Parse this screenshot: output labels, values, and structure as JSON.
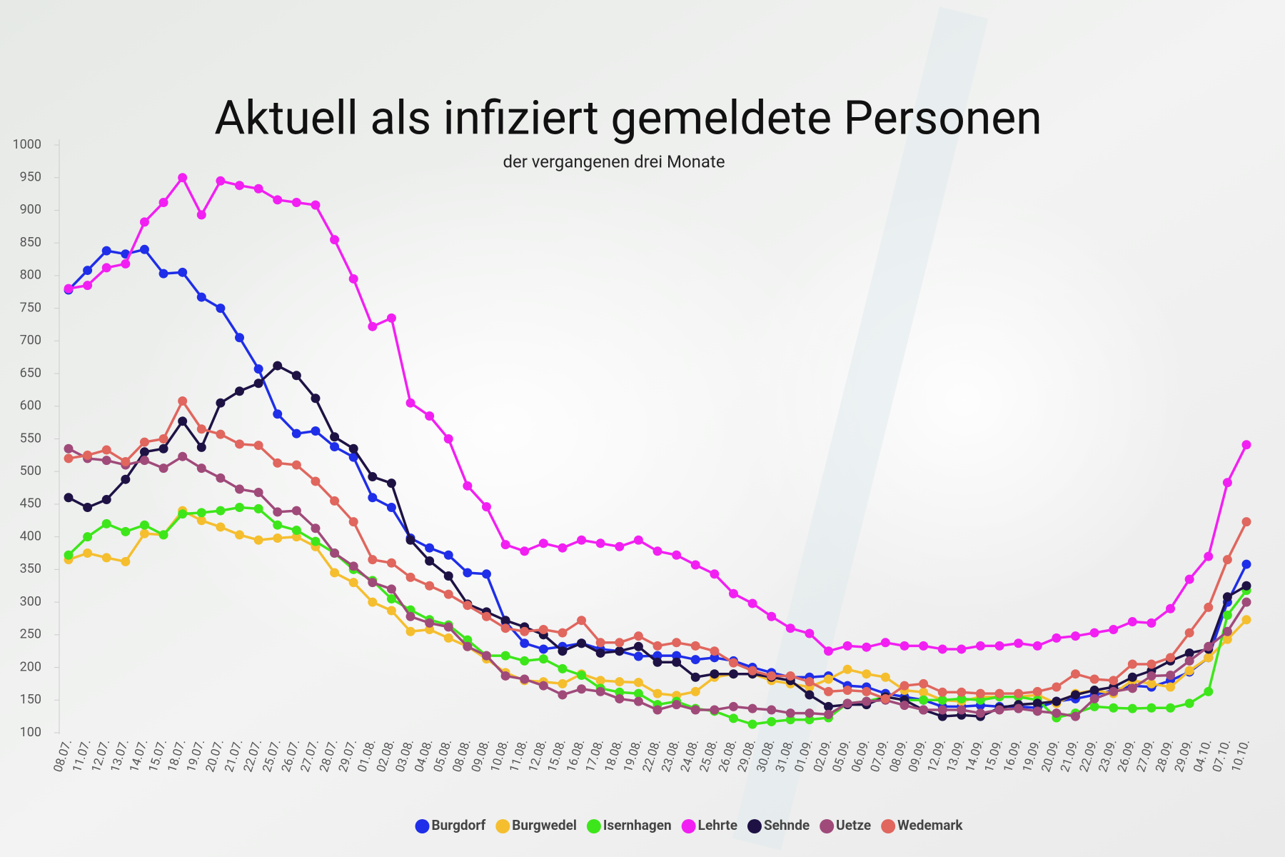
{
  "chart_data": {
    "type": "line",
    "title": "Aktuell als infiziert gemeldete Personen",
    "subtitle": "der vergangenen drei Monate",
    "categories": [
      "08.07.",
      "11.07.",
      "12.07.",
      "13.07.",
      "14.07.",
      "15.07.",
      "18.07.",
      "19.07.",
      "20.07.",
      "21.07.",
      "22.07.",
      "25.07.",
      "26.07.",
      "27.07.",
      "28.07.",
      "29.07.",
      "01.08.",
      "02.08.",
      "03.08.",
      "04.08.",
      "05.08.",
      "08.08.",
      "09.08.",
      "10.08.",
      "11.08.",
      "12.08.",
      "15.08.",
      "16.08.",
      "17.08.",
      "18.08.",
      "19.08.",
      "22.08.",
      "23.08.",
      "24.08.",
      "25.08.",
      "26.08.",
      "29.08.",
      "30.08.",
      "31.08.",
      "01.09.",
      "02.09.",
      "05.09.",
      "06.09.",
      "07.09.",
      "08.09.",
      "09.09.",
      "12.09.",
      "13.09.",
      "14.09.",
      "15.09.",
      "16.09.",
      "19.09.",
      "20.09.",
      "21.09.",
      "22.09.",
      "23.09.",
      "26.09.",
      "27.09.",
      "28.09.",
      "29.09.",
      "04.10.",
      "07.10.",
      "10.10."
    ],
    "series": [
      {
        "name": "Burgdorf",
        "color": "#1f2ee8",
        "values": [
          778,
          808,
          838,
          833,
          840,
          803,
          805,
          767,
          750,
          705,
          657,
          588,
          558,
          562,
          538,
          522,
          460,
          445,
          398,
          383,
          372,
          345,
          343,
          270,
          237,
          228,
          232,
          237,
          228,
          225,
          217,
          218,
          218,
          212,
          215,
          210,
          200,
          192,
          185,
          185,
          187,
          172,
          170,
          160,
          155,
          150,
          140,
          140,
          142,
          140,
          140,
          138,
          148,
          152,
          158,
          165,
          172,
          170,
          180,
          193,
          215,
          300,
          358
        ]
      },
      {
        "name": "Burgwedel",
        "color": "#f5be2e",
        "values": [
          365,
          375,
          368,
          362,
          405,
          403,
          440,
          425,
          415,
          403,
          395,
          398,
          400,
          385,
          345,
          330,
          300,
          287,
          255,
          258,
          245,
          232,
          213,
          192,
          180,
          178,
          175,
          190,
          180,
          178,
          177,
          160,
          157,
          163,
          185,
          190,
          190,
          180,
          175,
          170,
          182,
          197,
          190,
          185,
          165,
          162,
          150,
          148,
          155,
          155,
          155,
          158,
          145,
          160,
          165,
          160,
          180,
          175,
          170,
          195,
          215,
          243,
          273
        ]
      },
      {
        "name": "Isernhagen",
        "color": "#3de61a",
        "values": [
          372,
          400,
          420,
          408,
          418,
          403,
          435,
          437,
          440,
          445,
          443,
          418,
          410,
          393,
          375,
          350,
          333,
          305,
          288,
          273,
          265,
          242,
          218,
          218,
          210,
          213,
          198,
          188,
          168,
          162,
          160,
          143,
          148,
          137,
          133,
          122,
          113,
          117,
          120,
          120,
          123,
          145,
          148,
          155,
          150,
          150,
          150,
          152,
          150,
          155,
          155,
          150,
          123,
          130,
          140,
          138,
          137,
          138,
          138,
          145,
          163,
          280,
          318
        ]
      },
      {
        "name": "Lehrte",
        "color": "#f21ff2",
        "values": [
          780,
          785,
          812,
          818,
          882,
          912,
          950,
          893,
          945,
          938,
          933,
          916,
          912,
          908,
          855,
          795,
          722,
          735,
          605,
          585,
          550,
          478,
          446,
          388,
          378,
          390,
          383,
          395,
          390,
          385,
          395,
          378,
          372,
          357,
          343,
          313,
          298,
          278,
          260,
          252,
          225,
          233,
          231,
          238,
          233,
          233,
          228,
          228,
          233,
          233,
          237,
          233,
          245,
          248,
          253,
          258,
          270,
          268,
          290,
          335,
          370,
          483,
          541
        ]
      },
      {
        "name": "Sehnde",
        "color": "#1e1245",
        "values": [
          460,
          445,
          457,
          488,
          530,
          535,
          577,
          537,
          605,
          623,
          635,
          662,
          647,
          612,
          553,
          535,
          492,
          482,
          395,
          363,
          340,
          297,
          285,
          272,
          262,
          250,
          225,
          237,
          222,
          225,
          232,
          208,
          208,
          185,
          190,
          190,
          190,
          185,
          180,
          158,
          140,
          143,
          143,
          155,
          150,
          135,
          125,
          127,
          125,
          138,
          143,
          145,
          148,
          158,
          165,
          170,
          185,
          195,
          210,
          222,
          228,
          308,
          325
        ]
      },
      {
        "name": "Uetze",
        "color": "#a04a7a",
        "values": [
          535,
          520,
          517,
          510,
          517,
          505,
          523,
          505,
          490,
          473,
          468,
          438,
          440,
          413,
          375,
          355,
          330,
          320,
          278,
          268,
          262,
          232,
          218,
          187,
          182,
          172,
          158,
          167,
          163,
          152,
          148,
          135,
          143,
          135,
          135,
          140,
          137,
          135,
          130,
          130,
          128,
          145,
          148,
          150,
          142,
          135,
          135,
          135,
          130,
          135,
          137,
          133,
          130,
          125,
          152,
          163,
          168,
          187,
          188,
          210,
          232,
          255,
          300
        ]
      },
      {
        "name": "Wedemark",
        "color": "#e0665e",
        "values": [
          520,
          525,
          533,
          515,
          545,
          550,
          608,
          565,
          557,
          542,
          540,
          513,
          510,
          485,
          455,
          423,
          365,
          360,
          338,
          325,
          312,
          295,
          278,
          260,
          255,
          258,
          253,
          272,
          238,
          238,
          248,
          233,
          238,
          233,
          225,
          207,
          195,
          187,
          187,
          178,
          163,
          165,
          163,
          152,
          172,
          175,
          162,
          162,
          160,
          160,
          160,
          163,
          170,
          190,
          182,
          180,
          205,
          205,
          215,
          253,
          292,
          365,
          423
        ]
      }
    ],
    "ylim": [
      100,
      1000
    ],
    "yticks": [
      100,
      150,
      200,
      250,
      300,
      350,
      400,
      450,
      500,
      550,
      600,
      650,
      700,
      750,
      800,
      850,
      900,
      950,
      1000
    ]
  }
}
